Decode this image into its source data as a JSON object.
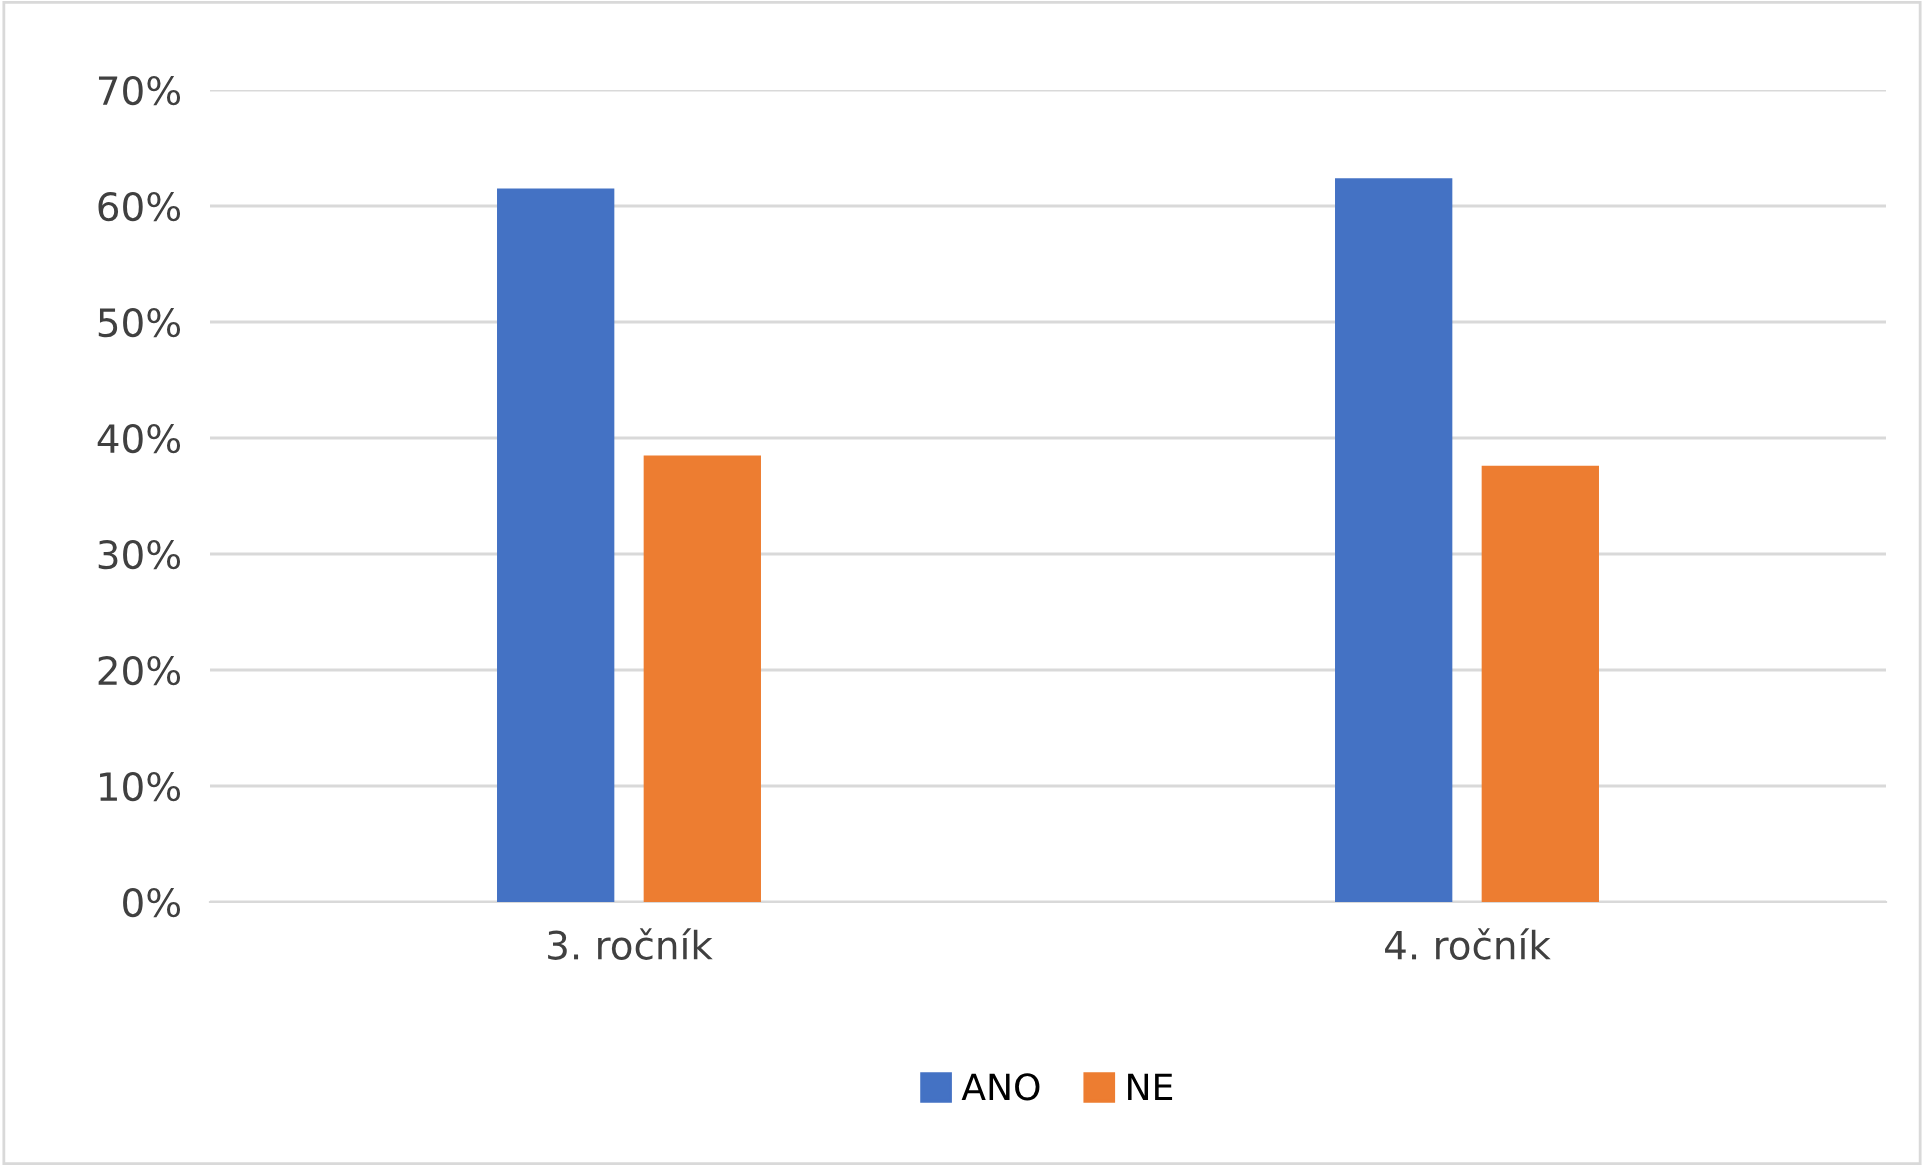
{
  "chart_data": {
    "type": "bar",
    "categories": [
      "3. ročník",
      "4. ročník"
    ],
    "series": [
      {
        "name": "ANO",
        "color": "#4472c4",
        "values": [
          61.5,
          62.4
        ]
      },
      {
        "name": "NE",
        "color": "#ed7d31",
        "values": [
          38.5,
          37.6
        ]
      }
    ],
    "ylim": [
      0,
      70
    ],
    "yticks": [
      {
        "value": 0,
        "label": "0%"
      },
      {
        "value": 10,
        "label": "10%"
      },
      {
        "value": 20,
        "label": "20%"
      },
      {
        "value": 30,
        "label": "30%"
      },
      {
        "value": 40,
        "label": "40%"
      },
      {
        "value": 50,
        "label": "50%"
      },
      {
        "value": 60,
        "label": "60%"
      },
      {
        "value": 70,
        "label": "70%"
      }
    ],
    "grid": "y",
    "legend": "bottom"
  }
}
